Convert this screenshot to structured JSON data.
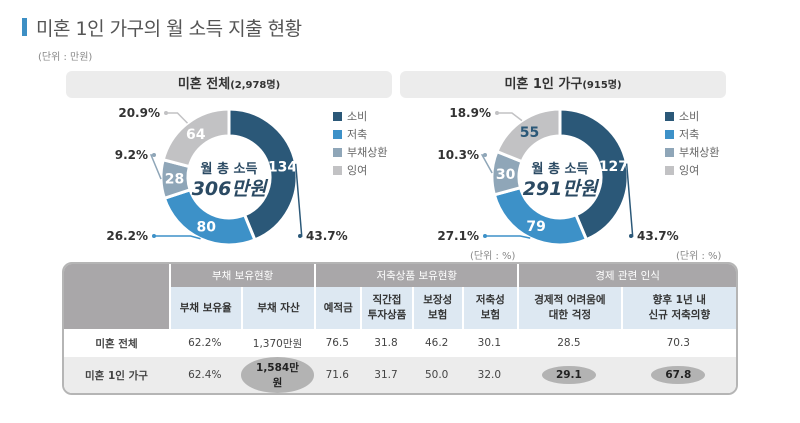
{
  "title": "미혼 1인 가구의 월 소득 지출 현황",
  "unit_top": "(단위 : 만원)",
  "unit_pct": "(단위 : %)",
  "colors": {
    "소비": "#2b5878",
    "저축": "#3d91c8",
    "부채상환": "#8fa6b8",
    "잉여": "#c2c2c4",
    "accent": "#3d8fc4"
  },
  "legend": [
    "소비",
    "저축",
    "부채상환",
    "잉여"
  ],
  "chart_data": [
    {
      "type": "pie",
      "variant": "donut",
      "panel_title": "미혼 전체",
      "panel_count": "(2,978명)",
      "center_label": "월 총 소득",
      "center_value": "306만원",
      "categories": [
        "소비",
        "저축",
        "부채상환",
        "잉여"
      ],
      "values": [
        134,
        80,
        28,
        64
      ],
      "percentages": [
        "43.7%",
        "26.2%",
        "9.2%",
        "20.9%"
      ]
    },
    {
      "type": "pie",
      "variant": "donut",
      "panel_title": "미혼 1인 가구",
      "panel_count": "(915명)",
      "center_label": "월 총 소득",
      "center_value": "291만원",
      "categories": [
        "소비",
        "저축",
        "부채상환",
        "잉여"
      ],
      "values": [
        127,
        79,
        30,
        55
      ],
      "percentages": [
        "43.7%",
        "27.1%",
        "10.3%",
        "18.9%"
      ]
    }
  ],
  "table": {
    "groups": [
      "부채 보유현황",
      "저축상품 보유현황",
      "경제 관련 인식"
    ],
    "columns": [
      "부채 보유율",
      "부채 자산",
      "예적금",
      "직간접\n투자상품",
      "보장성\n보험",
      "저축성\n보험",
      "경제적 어려움에\n대한 걱정",
      "향후 1년 내\n신규 저축의향"
    ],
    "rows": [
      {
        "label": "미혼 전체",
        "cells": [
          "62.2%",
          "1,370만원",
          "76.5",
          "31.8",
          "46.2",
          "30.1",
          "28.5",
          "70.3"
        ]
      },
      {
        "label": "미혼 1인 가구",
        "cells": [
          "62.4%",
          "1,584만원",
          "71.6",
          "31.7",
          "50.0",
          "32.0",
          "29.1",
          "67.8"
        ],
        "highlighted": [
          1,
          6,
          7
        ]
      }
    ]
  }
}
